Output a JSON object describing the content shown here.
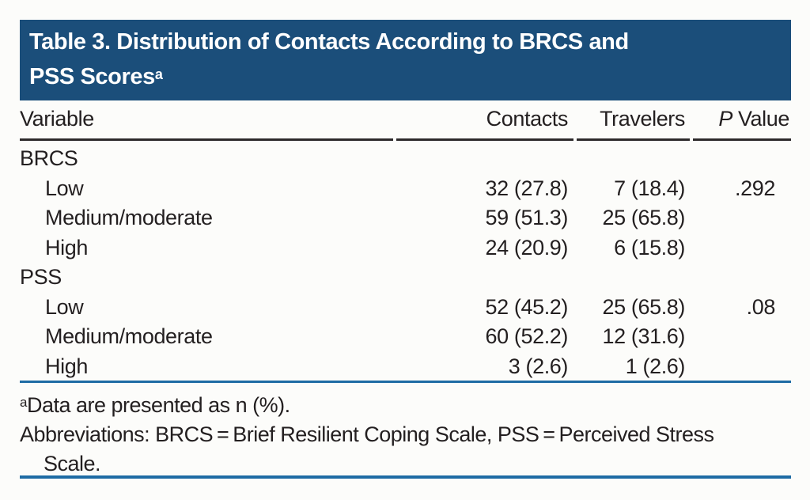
{
  "title": {
    "line1": "Table 3. Distribution of Contacts According to BRCS and",
    "line2": "PSS Scores",
    "superscript": "a"
  },
  "table": {
    "columns": {
      "variable": "Variable",
      "contacts": "Contacts",
      "travelers": "Travelers",
      "p_italic": "P",
      "p_rest": "Value"
    },
    "rows": [
      {
        "label": "BRCS",
        "indent": false,
        "contacts": "",
        "travelers": "",
        "p": ""
      },
      {
        "label": "Low",
        "indent": true,
        "contacts": "32 (27.8)",
        "travelers": "7 (18.4)",
        "p": ".292"
      },
      {
        "label": "Medium/moderate",
        "indent": true,
        "contacts": "59 (51.3)",
        "travelers": "25 (65.8)",
        "p": ""
      },
      {
        "label": "High",
        "indent": true,
        "contacts": "24 (20.9)",
        "travelers": "6 (15.8)",
        "p": ""
      },
      {
        "label": "PSS",
        "indent": false,
        "contacts": "",
        "travelers": "",
        "p": ""
      },
      {
        "label": "Low",
        "indent": true,
        "contacts": "52 (45.2)",
        "travelers": "25 (65.8)",
        "p": ".08"
      },
      {
        "label": "Medium/moderate",
        "indent": true,
        "contacts": "60 (52.2)",
        "travelers": "12 (31.6)",
        "p": ""
      },
      {
        "label": "High",
        "indent": true,
        "contacts": "3 (2.6)",
        "travelers": "1 (2.6)",
        "p": ""
      }
    ]
  },
  "footnotes": {
    "note_a_marker": "a",
    "note_a_text": "Data are presented as n (%).",
    "abbrev_line1": "Abbreviations: BRCS = Brief Resilient Coping Scale, PSS = Perceived Stress",
    "abbrev_line2": "Scale."
  },
  "colors": {
    "banner_bg": "#1b4e7a",
    "banner_text": "#ffffff",
    "body_text": "#231f20",
    "header_rule": "#2d2a2b",
    "blue_rule": "#1e6ba4",
    "page_bg": "#fcfcfa"
  }
}
